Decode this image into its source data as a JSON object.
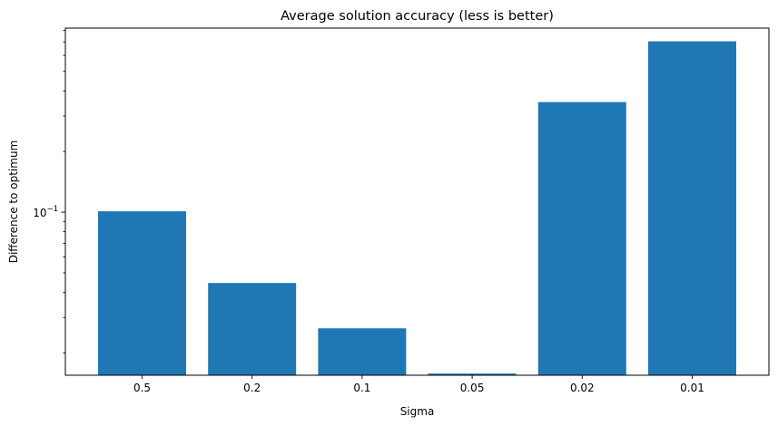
{
  "chart_data": {
    "type": "bar",
    "title": "Average solution accuracy (less is better)",
    "xlabel": "Sigma",
    "ylabel": "Difference to optimum",
    "yscale": "log",
    "ylim": [
      0.0155,
      0.82
    ],
    "categories": [
      "0.5",
      "0.2",
      "0.1",
      "0.05",
      "0.02",
      "0.01"
    ],
    "values": [
      0.101,
      0.0445,
      0.0265,
      0.0158,
      0.352,
      0.705
    ],
    "y_major_ticks": [
      {
        "value": 0.1,
        "base": "10",
        "exponent": "−1"
      }
    ],
    "y_minor_ticks": [
      0.02,
      0.03,
      0.04,
      0.05,
      0.06,
      0.07,
      0.08,
      0.09,
      0.2,
      0.3,
      0.4,
      0.5,
      0.6,
      0.7,
      0.8
    ],
    "bar_color": "#1f77b4",
    "grid": false,
    "legend": "none"
  }
}
